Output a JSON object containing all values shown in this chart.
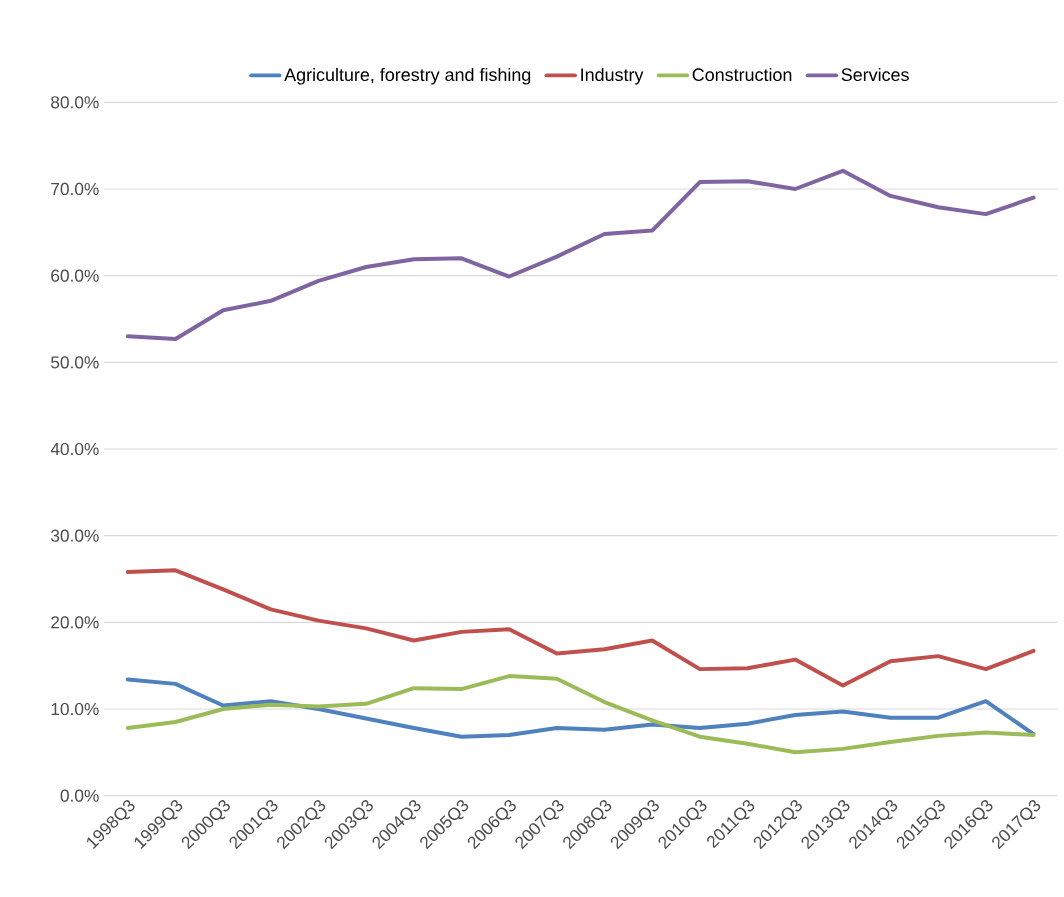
{
  "chart_data": {
    "type": "line",
    "categories": [
      "1998Q3",
      "1999Q3",
      "2000Q3",
      "2001Q3",
      "2002Q3",
      "2003Q3",
      "2004Q3",
      "2005Q3",
      "2006Q3",
      "2007Q3",
      "2008Q3",
      "2009Q3",
      "2010Q3",
      "2011Q3",
      "2012Q3",
      "2013Q3",
      "2014Q3",
      "2015Q3",
      "2016Q3",
      "2017Q3"
    ],
    "series": [
      {
        "name": "Agriculture, forestry and fishing",
        "color": "#4f81bd",
        "values": [
          13.4,
          12.9,
          10.4,
          10.9,
          10.0,
          8.9,
          7.8,
          6.8,
          7.0,
          7.8,
          7.6,
          8.2,
          7.8,
          8.3,
          9.3,
          9.7,
          9.0,
          9.0,
          10.9,
          7.1
        ]
      },
      {
        "name": "Industry",
        "color": "#c0504d",
        "values": [
          25.8,
          26.0,
          23.8,
          21.5,
          20.2,
          19.3,
          17.9,
          18.9,
          19.2,
          16.4,
          16.9,
          17.9,
          14.6,
          14.7,
          15.7,
          12.7,
          15.5,
          16.1,
          14.6,
          16.7
        ]
      },
      {
        "name": "Construction",
        "color": "#9bbb59",
        "values": [
          7.8,
          8.5,
          10.0,
          10.5,
          10.3,
          10.6,
          12.4,
          12.3,
          13.8,
          13.5,
          10.8,
          8.7,
          6.8,
          6.0,
          5.0,
          5.4,
          6.2,
          6.9,
          7.3,
          7.0
        ]
      },
      {
        "name": "Services",
        "color": "#8064a2",
        "values": [
          53.0,
          52.7,
          56.0,
          57.1,
          59.4,
          61.0,
          61.9,
          62.0,
          59.9,
          62.2,
          64.8,
          65.2,
          70.8,
          70.9,
          70.0,
          72.1,
          69.2,
          67.9,
          67.1,
          69.0
        ]
      }
    ],
    "ylim": [
      0,
      80
    ],
    "yticks": [
      {
        "value": 0,
        "label": "0.0%"
      },
      {
        "value": 10,
        "label": "10.0%"
      },
      {
        "value": 20,
        "label": "20.0%"
      },
      {
        "value": 30,
        "label": "30.0%"
      },
      {
        "value": 40,
        "label": "40.0%"
      },
      {
        "value": 50,
        "label": "50.0%"
      },
      {
        "value": 60,
        "label": "60.0%"
      },
      {
        "value": 70,
        "label": "70.0%"
      },
      {
        "value": 80,
        "label": "80.0%"
      }
    ],
    "grid": "y",
    "legend": "top",
    "marker": "none",
    "line_style": "solid"
  }
}
